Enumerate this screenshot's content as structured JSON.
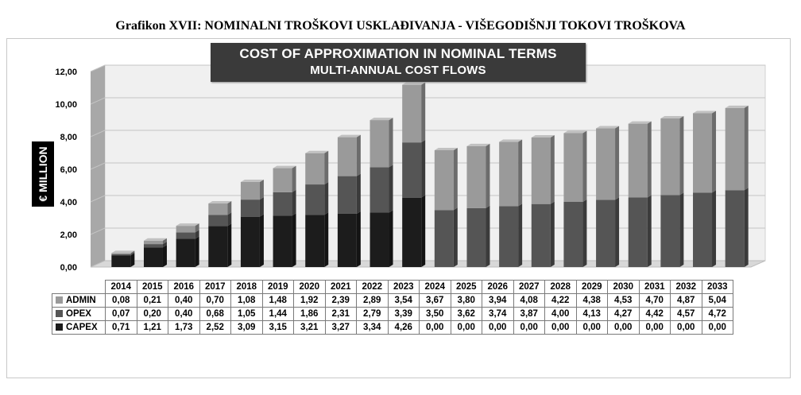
{
  "page_title": "Grafikon XVII: NOMINALNI TROŠKOVI USKLAĐIVANJA - VIŠEGODIŠNJI TOKOVI TROŠKOVA",
  "colors": {
    "admin": "#9a9a9a",
    "opex": "#555555",
    "capex": "#1c1c1c",
    "background": "#ffffff",
    "title_box": "#3a3a3a"
  },
  "chart_data": {
    "type": "bar",
    "stacked": true,
    "title": "COST OF APPROXIMATION IN NOMINAL TERMS",
    "subtitle": "MULTI-ANNUAL COST FLOWS",
    "xlabel": "",
    "ylabel": "€ MILLION",
    "ylim": [
      0,
      12
    ],
    "yticks": [
      "0,00",
      "2,00",
      "4,00",
      "6,00",
      "8,00",
      "10,00",
      "12,00"
    ],
    "grid": true,
    "legend": "data-table below chart",
    "categories": [
      "2014",
      "2015",
      "2016",
      "2017",
      "2018",
      "2019",
      "2020",
      "2021",
      "2022",
      "2023",
      "2024",
      "2025",
      "2026",
      "2027",
      "2028",
      "2029",
      "2030",
      "2031",
      "2032",
      "2033"
    ],
    "series": [
      {
        "name": "ADMIN",
        "color": "#9a9a9a",
        "values": [
          0.08,
          0.21,
          0.4,
          0.7,
          1.08,
          1.48,
          1.92,
          2.39,
          2.89,
          3.54,
          3.67,
          3.8,
          3.94,
          4.08,
          4.22,
          4.38,
          4.53,
          4.7,
          4.87,
          5.04
        ],
        "labels": [
          "0,08",
          "0,21",
          "0,40",
          "0,70",
          "1,08",
          "1,48",
          "1,92",
          "2,39",
          "2,89",
          "3,54",
          "3,67",
          "3,80",
          "3,94",
          "4,08",
          "4,22",
          "4,38",
          "4,53",
          "4,70",
          "4,87",
          "5,04"
        ]
      },
      {
        "name": "OPEX",
        "color": "#555555",
        "values": [
          0.07,
          0.2,
          0.4,
          0.68,
          1.05,
          1.44,
          1.86,
          2.31,
          2.79,
          3.39,
          3.5,
          3.62,
          3.74,
          3.87,
          4.0,
          4.13,
          4.27,
          4.42,
          4.57,
          4.72
        ],
        "labels": [
          "0,07",
          "0,20",
          "0,40",
          "0,68",
          "1,05",
          "1,44",
          "1,86",
          "2,31",
          "2,79",
          "3,39",
          "3,50",
          "3,62",
          "3,74",
          "3,87",
          "4,00",
          "4,13",
          "4,27",
          "4,42",
          "4,57",
          "4,72"
        ]
      },
      {
        "name": "CAPEX",
        "color": "#1c1c1c",
        "values": [
          0.71,
          1.21,
          1.73,
          2.52,
          3.09,
          3.15,
          3.21,
          3.27,
          3.34,
          4.26,
          0.0,
          0.0,
          0.0,
          0.0,
          0.0,
          0.0,
          0.0,
          0.0,
          0.0,
          0.0
        ],
        "labels": [
          "0,71",
          "1,21",
          "1,73",
          "2,52",
          "3,09",
          "3,15",
          "3,21",
          "3,27",
          "3,34",
          "4,26",
          "0,00",
          "0,00",
          "0,00",
          "0,00",
          "0,00",
          "0,00",
          "0,00",
          "0,00",
          "0,00",
          "0,00"
        ]
      }
    ]
  }
}
